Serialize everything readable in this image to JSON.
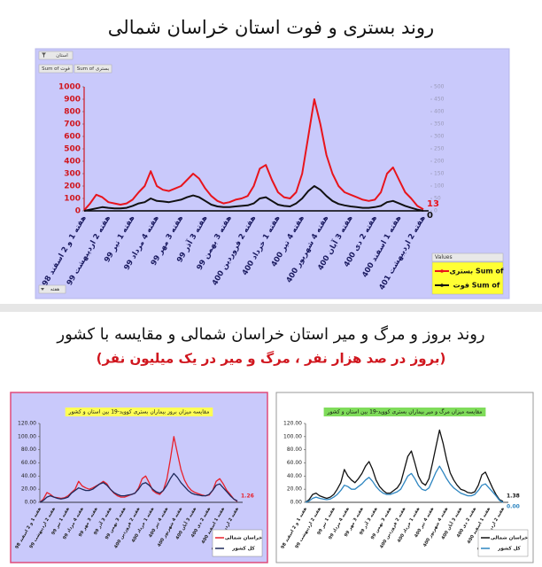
{
  "section_title": "روند بروز و مرگ و میر استان خراسان شمالی و مقایسه با کشور",
  "section_subtitle": "(بروز در صد هزار نفر ، مرگ و میر در یک میلیون نفر)",
  "chart_data": [
    {
      "type": "line",
      "title": "روند بستری و فوت استان خراسان شمالی",
      "buttons": [
        "استان",
        "Sum of فوت",
        "Sum of بستری",
        "هفته"
      ],
      "legend_title": "Values",
      "categories": [
        "هفته 1 و 2 اسفند 98",
        null,
        null,
        null,
        "هفته 2 اردیبهشت 99",
        null,
        null,
        null,
        "هفته 1 تیر 99",
        null,
        null,
        null,
        "هفته 4 مرداد 99",
        null,
        null,
        null,
        "هفته 3 مهر 99",
        null,
        null,
        null,
        "هفته 3 آذر 99",
        null,
        null,
        null,
        "هفته 3 بهمن 99",
        null,
        null,
        null,
        "هفته 2 فروردین 400",
        null,
        null,
        null,
        "هفته 1 خرداد 400",
        null,
        null,
        null,
        "هفته 4 تیر 400",
        null,
        null,
        null,
        "هفته 4 شهریور 400",
        null,
        null,
        null,
        "هفته 3 آبان 400",
        null,
        null,
        null,
        "هفته 2 دی 400",
        null,
        null,
        null,
        "هفته 1 اسفند 400",
        null,
        null,
        null,
        "هفته 2 اردیبهشت 401"
      ],
      "ylim": [
        0,
        1000
      ],
      "yticks": [
        0,
        100,
        200,
        300,
        400,
        500,
        600,
        700,
        800,
        900,
        1000
      ],
      "y2lim": [
        0,
        500
      ],
      "y2ticks": [
        0,
        50,
        100,
        150,
        200,
        250,
        300,
        350,
        400,
        450,
        500
      ],
      "series": [
        {
          "name": "Sum of بستری",
          "color": "#e8141c",
          "values": [
            5,
            60,
            130,
            110,
            70,
            60,
            50,
            60,
            90,
            150,
            200,
            320,
            200,
            170,
            160,
            180,
            200,
            250,
            300,
            260,
            180,
            120,
            80,
            60,
            70,
            90,
            100,
            120,
            200,
            340,
            370,
            250,
            150,
            110,
            100,
            150,
            300,
            600,
            900,
            700,
            450,
            300,
            200,
            150,
            130,
            110,
            90,
            80,
            90,
            150,
            300,
            350,
            250,
            150,
            100,
            40,
            13
          ],
          "value_labels": [
            null,
            null,
            null,
            null,
            null,
            null,
            null,
            null,
            null,
            null,
            null,
            null,
            null,
            null,
            null,
            null,
            null,
            null,
            null,
            null,
            null,
            null,
            null,
            null,
            null,
            null,
            null,
            null,
            null,
            null,
            null,
            null,
            null,
            null,
            null,
            null,
            null,
            null,
            null,
            null,
            null,
            null,
            null,
            null,
            null,
            null,
            null,
            null,
            null,
            null,
            null,
            null,
            null,
            null,
            null,
            null,
            "13"
          ]
        },
        {
          "name": "Sum of فوت",
          "color": "#111111",
          "axis": "y2",
          "values": [
            0,
            5,
            10,
            15,
            12,
            10,
            10,
            12,
            20,
            30,
            35,
            50,
            40,
            38,
            35,
            40,
            45,
            55,
            62,
            55,
            40,
            25,
            18,
            15,
            15,
            18,
            20,
            22,
            30,
            50,
            55,
            40,
            25,
            20,
            18,
            30,
            50,
            80,
            100,
            85,
            60,
            40,
            28,
            22,
            18,
            15,
            12,
            12,
            15,
            20,
            35,
            40,
            30,
            20,
            12,
            5,
            0
          ],
          "value_labels": [
            null,
            null,
            null,
            null,
            null,
            null,
            null,
            null,
            null,
            null,
            null,
            null,
            null,
            null,
            null,
            null,
            null,
            null,
            null,
            null,
            null,
            null,
            null,
            null,
            null,
            null,
            null,
            null,
            null,
            null,
            null,
            null,
            null,
            null,
            null,
            null,
            null,
            null,
            null,
            null,
            null,
            null,
            null,
            null,
            null,
            null,
            null,
            null,
            null,
            null,
            null,
            null,
            null,
            null,
            null,
            null,
            "0"
          ]
        }
      ]
    },
    {
      "type": "line",
      "title": "مقایسه میزان بروز بیماران بستری کووید-19 بین استان و کشور",
      "title_color": "#ffff55",
      "categories": [
        "هفته 1 و 2 اسفند 98",
        null,
        null,
        null,
        "هفته 2 اردیبهشت 99",
        null,
        null,
        null,
        "هفته 1 تیر 99",
        null,
        null,
        null,
        "هفته 4 مرداد 99",
        null,
        null,
        null,
        "هفته 3 مهر 99",
        null,
        null,
        null,
        "هفته 3 آذر 99",
        null,
        null,
        null,
        "هفته 3 بهمن 99",
        null,
        null,
        null,
        "هفته 2 فروردین 400",
        null,
        null,
        null,
        "هفته 1 خرداد 400",
        null,
        null,
        null,
        "هفته 4 تیر 400",
        null,
        null,
        null,
        "هفته 4 شهریور 400",
        null,
        null,
        null,
        "هفته 3 آبان 400",
        null,
        null,
        null,
        "هفته 2 دی 400",
        null,
        null,
        null,
        "هفته 1 اسفند 400",
        null,
        null,
        null,
        "هفته 2 اردیبهشت 401"
      ],
      "ylim": [
        0,
        120
      ],
      "yticks": [
        {
          "value": 0,
          "label": "0.00"
        },
        {
          "value": 20,
          "label": "20.00"
        },
        {
          "value": 40,
          "label": "40.00"
        },
        {
          "value": 60,
          "label": "60.00"
        },
        {
          "value": 80,
          "label": "80.00"
        },
        {
          "value": 100,
          "label": "100.00"
        },
        {
          "value": 120,
          "label": "120.00"
        }
      ],
      "series": [
        {
          "name": "خراسان شمالی",
          "color": "#e8202a",
          "values": [
            0,
            5,
            15,
            12,
            8,
            7,
            6,
            7,
            10,
            15,
            20,
            32,
            25,
            22,
            20,
            22,
            25,
            28,
            32,
            28,
            20,
            14,
            10,
            8,
            8,
            10,
            12,
            14,
            22,
            36,
            40,
            30,
            18,
            14,
            12,
            18,
            35,
            65,
            100,
            75,
            50,
            34,
            24,
            18,
            15,
            13,
            11,
            10,
            11,
            18,
            32,
            36,
            28,
            18,
            12,
            5,
            1.26
          ],
          "value_labels": [
            null,
            null,
            null,
            null,
            null,
            null,
            null,
            null,
            null,
            null,
            null,
            null,
            null,
            null,
            null,
            null,
            null,
            null,
            null,
            null,
            null,
            null,
            null,
            null,
            null,
            null,
            null,
            null,
            null,
            null,
            null,
            null,
            null,
            null,
            null,
            null,
            null,
            null,
            null,
            null,
            null,
            null,
            null,
            null,
            null,
            null,
            null,
            null,
            null,
            null,
            null,
            null,
            null,
            null,
            null,
            null,
            "1.26"
          ]
        },
        {
          "name": "کل کشور",
          "color": "#1f2a5c",
          "values": [
            0,
            3,
            8,
            10,
            8,
            6,
            5,
            6,
            8,
            14,
            18,
            22,
            20,
            18,
            18,
            20,
            24,
            28,
            30,
            26,
            20,
            15,
            12,
            10,
            10,
            11,
            12,
            14,
            20,
            28,
            30,
            26,
            20,
            16,
            14,
            18,
            26,
            36,
            44,
            38,
            30,
            24,
            18,
            14,
            12,
            11,
            10,
            10,
            12,
            18,
            26,
            28,
            22,
            16,
            10,
            5,
            2
          ]
        }
      ]
    },
    {
      "type": "line",
      "title": "مقایسه میزان مرگ و میر بیماران بستری کووید-19 بین استان و کشور",
      "title_color": "#7fdc5a",
      "categories": [
        "هفته 1 و 2 اسفند 98",
        null,
        null,
        null,
        "هفته 2 اردیبهشت 99",
        null,
        null,
        null,
        "هفته 1 تیر 99",
        null,
        null,
        null,
        "هفته 4 مرداد 99",
        null,
        null,
        null,
        "هفته 3 مهر 99",
        null,
        null,
        null,
        "هفته 3 آذر 99",
        null,
        null,
        null,
        "هفته 3 بهمن 99",
        null,
        null,
        null,
        "هفته 2 فروردین 400",
        null,
        null,
        null,
        "هفته 1 خرداد 400",
        null,
        null,
        null,
        "هفته 4 تیر 400",
        null,
        null,
        null,
        "هفته 4 شهریور 400",
        null,
        null,
        null,
        "هفته 3 آبان 400",
        null,
        null,
        null,
        "هفته 2 دی 400",
        null,
        null,
        null,
        "هفته 1 اسفند 400",
        null,
        null,
        null,
        "هفته 2 اردیبهشت 401"
      ],
      "ylim": [
        0,
        120
      ],
      "yticks": [
        {
          "value": 0,
          "label": "0.00"
        },
        {
          "value": 20,
          "label": "20.00"
        },
        {
          "value": 40,
          "label": "40.00"
        },
        {
          "value": 60,
          "label": "60.00"
        },
        {
          "value": 80,
          "label": "80.00"
        },
        {
          "value": 100,
          "label": "100.00"
        },
        {
          "value": 120,
          "label": "120.00"
        }
      ],
      "series": [
        {
          "name": "خراسان شمالی",
          "color": "#111111",
          "values": [
            0,
            4,
            12,
            14,
            10,
            8,
            6,
            8,
            12,
            20,
            30,
            50,
            40,
            34,
            30,
            36,
            44,
            55,
            62,
            50,
            34,
            24,
            18,
            14,
            14,
            18,
            22,
            30,
            50,
            70,
            78,
            60,
            40,
            30,
            26,
            36,
            60,
            85,
            110,
            90,
            65,
            45,
            34,
            26,
            20,
            18,
            15,
            14,
            16,
            26,
            42,
            46,
            34,
            22,
            12,
            4,
            1.38
          ],
          "value_labels": [
            null,
            null,
            null,
            null,
            null,
            null,
            null,
            null,
            null,
            null,
            null,
            null,
            null,
            null,
            null,
            null,
            null,
            null,
            null,
            null,
            null,
            null,
            null,
            null,
            null,
            null,
            null,
            null,
            null,
            null,
            null,
            null,
            null,
            null,
            null,
            null,
            null,
            null,
            null,
            null,
            null,
            null,
            null,
            null,
            null,
            null,
            null,
            null,
            null,
            null,
            null,
            null,
            null,
            null,
            null,
            null,
            "1.38"
          ]
        },
        {
          "name": "کل کشور",
          "color": "#2e86c1",
          "values": [
            0,
            2,
            6,
            8,
            6,
            5,
            4,
            5,
            8,
            12,
            18,
            26,
            24,
            20,
            20,
            24,
            28,
            34,
            38,
            32,
            24,
            18,
            14,
            12,
            12,
            14,
            16,
            20,
            30,
            40,
            44,
            36,
            26,
            20,
            18,
            22,
            34,
            46,
            55,
            46,
            36,
            28,
            22,
            18,
            14,
            12,
            10,
            10,
            12,
            18,
            26,
            28,
            22,
            16,
            10,
            3,
            0
          ],
          "value_labels": [
            null,
            null,
            null,
            null,
            null,
            null,
            null,
            null,
            null,
            null,
            null,
            null,
            null,
            null,
            null,
            null,
            null,
            null,
            null,
            null,
            null,
            null,
            null,
            null,
            null,
            null,
            null,
            null,
            null,
            null,
            null,
            null,
            null,
            null,
            null,
            null,
            null,
            null,
            null,
            null,
            null,
            null,
            null,
            null,
            null,
            null,
            null,
            null,
            null,
            null,
            null,
            null,
            null,
            null,
            null,
            null,
            "0.00"
          ]
        }
      ]
    }
  ]
}
